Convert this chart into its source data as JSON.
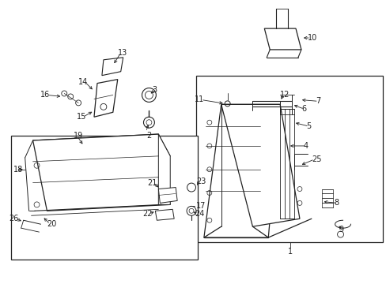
{
  "bg_color": "#ffffff",
  "line_color": "#222222",
  "label_fontsize": 7,
  "fig_width": 4.89,
  "fig_height": 3.6,
  "dpi": 100
}
